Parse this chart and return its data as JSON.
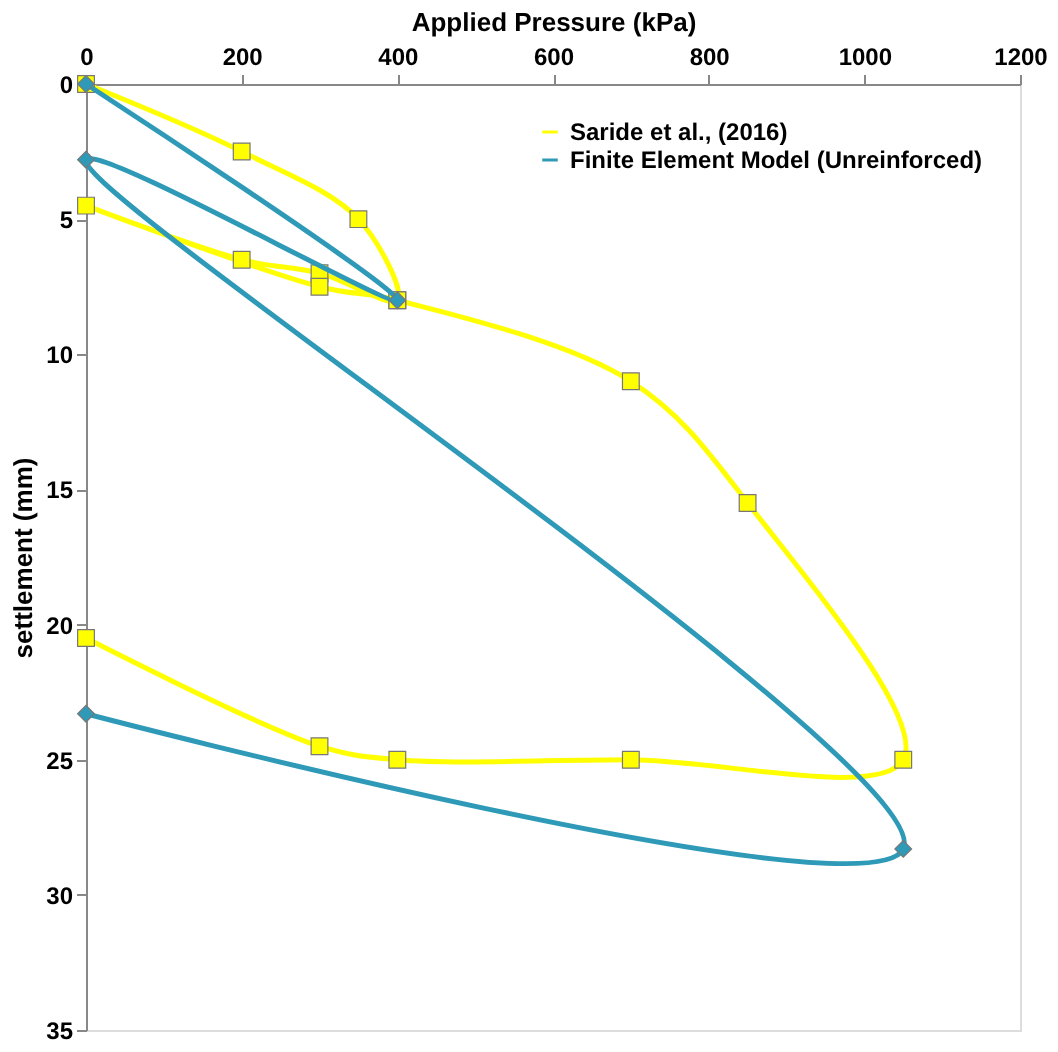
{
  "chart_data": {
    "type": "line",
    "xlabel": "Applied Pressure (kPa)",
    "ylabel": "settlement (mm)",
    "xlim": [
      0,
      1200
    ],
    "xticks": [
      0,
      200,
      400,
      600,
      800,
      1000,
      1200
    ],
    "ylim": [
      35,
      0
    ],
    "yticks": [
      0,
      5,
      10,
      15,
      20,
      25,
      30,
      35
    ],
    "grid": false,
    "legend": "top right",
    "series": [
      {
        "name": "Saride et al., (2016)",
        "color": "#ffff00",
        "marker": "square",
        "x": [
          0,
          200,
          350,
          400,
          300,
          200,
          0,
          300,
          400,
          700,
          850,
          1050,
          700,
          400,
          300,
          0
        ],
        "values": [
          0,
          2.5,
          5,
          8,
          7,
          6.5,
          4.5,
          7.5,
          8,
          11,
          15.5,
          25,
          25,
          25,
          24.5,
          20.5
        ]
      },
      {
        "name": "Finite Element Model (Unreinforced)",
        "color": "#2e9ab8",
        "marker": "diamond",
        "x": [
          0,
          400,
          0,
          1050,
          0
        ],
        "values": [
          0,
          8,
          2.8,
          28.3,
          23.3
        ]
      }
    ]
  }
}
